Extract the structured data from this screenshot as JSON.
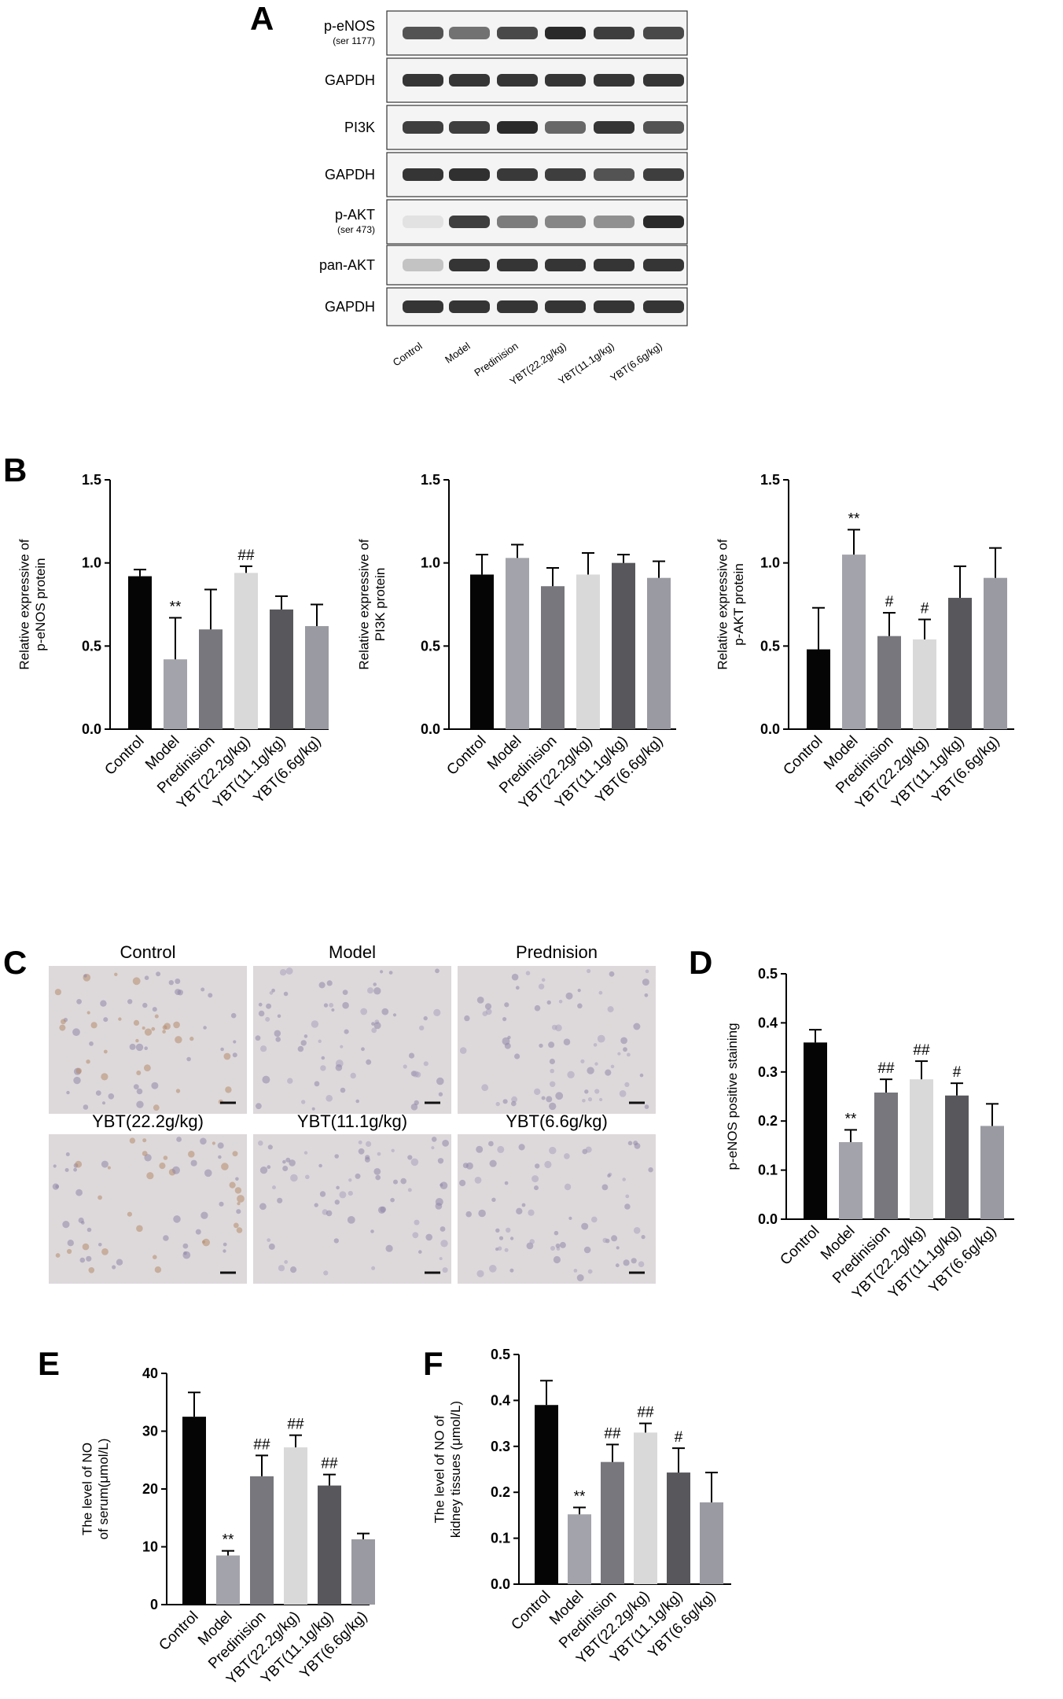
{
  "panels": {
    "A": "A",
    "B": "B",
    "C": "C",
    "D": "D",
    "E": "E",
    "F": "F"
  },
  "blot": {
    "rows": [
      {
        "label": "p-eNOS",
        "sub": "(ser 1177)",
        "intensities": [
          0.75,
          0.6,
          0.8,
          0.95,
          0.85,
          0.8
        ]
      },
      {
        "label": "GAPDH",
        "sub": "",
        "intensities": [
          0.9,
          0.9,
          0.9,
          0.9,
          0.9,
          0.9
        ]
      },
      {
        "label": "PI3K",
        "sub": "",
        "intensities": [
          0.85,
          0.85,
          0.95,
          0.65,
          0.9,
          0.75
        ]
      },
      {
        "label": "GAPDH",
        "sub": "",
        "intensities": [
          0.9,
          0.92,
          0.88,
          0.85,
          0.75,
          0.85
        ]
      },
      {
        "label": "p-AKT",
        "sub": "(ser 473)",
        "intensities": [
          0.05,
          0.85,
          0.55,
          0.5,
          0.45,
          0.95
        ]
      },
      {
        "label": "pan-AKT",
        "sub": "",
        "intensities": [
          0.2,
          0.9,
          0.9,
          0.9,
          0.9,
          0.9
        ]
      },
      {
        "label": "GAPDH",
        "sub": "",
        "intensities": [
          0.9,
          0.9,
          0.9,
          0.9,
          0.9,
          0.9
        ]
      }
    ],
    "lanes": [
      "Control",
      "Model",
      "Predinision",
      "YBT(22.2g/kg)",
      "YBT(11.1g/kg)",
      "YBT(6.6g/kg)"
    ]
  },
  "micrographs": {
    "titles": [
      "Control",
      "Model",
      "Prednision",
      "YBT(22.2g/kg)",
      "YBT(11.1g/kg)",
      "YBT(6.6g/kg)"
    ]
  },
  "colors": [
    "#050505",
    "#a3a3ab",
    "#77777d",
    "#d9d9d9",
    "#58585c",
    "#9a9aa2"
  ],
  "chart_data": [
    {
      "id": "B1",
      "type": "bar",
      "categories": [
        "Control",
        "Model",
        "Predinision",
        "YBT(22.2g/kg)",
        "YBT(11.1g/kg)",
        "YBT(6.6g/kg)"
      ],
      "values": [
        0.92,
        0.42,
        0.6,
        0.94,
        0.72,
        0.62
      ],
      "errors": [
        0.04,
        0.25,
        0.24,
        0.04,
        0.08,
        0.13
      ],
      "annotations": [
        "",
        "**",
        "",
        "##",
        "",
        ""
      ],
      "ylabel": [
        "Relative expressive of",
        "p-eNOS protein"
      ],
      "ylim": [
        0,
        1.5
      ],
      "yticks": [
        "0.0",
        "0.5",
        "1.0",
        "1.5"
      ]
    },
    {
      "id": "B2",
      "type": "bar",
      "categories": [
        "Control",
        "Model",
        "Predinision",
        "YBT(22.2g/kg)",
        "YBT(11.1g/kg)",
        "YBT(6.6g/kg)"
      ],
      "values": [
        0.93,
        1.03,
        0.86,
        0.93,
        1.0,
        0.91
      ],
      "errors": [
        0.12,
        0.08,
        0.11,
        0.13,
        0.05,
        0.1
      ],
      "annotations": [
        "",
        "",
        "",
        "",
        "",
        ""
      ],
      "ylabel": [
        "Relative expressive of",
        "PI3K protein"
      ],
      "ylim": [
        0,
        1.5
      ],
      "yticks": [
        "0.0",
        "0.5",
        "1.0",
        "1.5"
      ]
    },
    {
      "id": "B3",
      "type": "bar",
      "categories": [
        "Control",
        "Model",
        "Predinision",
        "YBT(22.2g/kg)",
        "YBT(11.1g/kg)",
        "YBT(6.6g/kg)"
      ],
      "values": [
        0.48,
        1.05,
        0.56,
        0.54,
        0.79,
        0.91
      ],
      "errors": [
        0.25,
        0.15,
        0.14,
        0.12,
        0.19,
        0.18
      ],
      "annotations": [
        "",
        "**",
        "#",
        "#",
        "",
        ""
      ],
      "ylabel": [
        "Relative expressive of",
        "p-AKT protein"
      ],
      "ylim": [
        0,
        1.5
      ],
      "yticks": [
        "0.0",
        "0.5",
        "1.0",
        "1.5"
      ]
    },
    {
      "id": "D",
      "type": "bar",
      "categories": [
        "Control",
        "Model",
        "Predinision",
        "YBT(22.2g/kg)",
        "YBT(11.1g/kg)",
        "YBT(6.6g/kg)"
      ],
      "values": [
        0.36,
        0.157,
        0.258,
        0.285,
        0.252,
        0.19
      ],
      "errors": [
        0.026,
        0.025,
        0.027,
        0.037,
        0.025,
        0.045
      ],
      "annotations": [
        "",
        "**",
        "##",
        "##",
        "#",
        ""
      ],
      "ylabel": [
        "p-eNOS positive staining"
      ],
      "ylim": [
        0,
        0.5
      ],
      "yticks": [
        "0.0",
        "0.1",
        "0.2",
        "0.3",
        "0.4",
        "0.5"
      ]
    },
    {
      "id": "E",
      "type": "bar",
      "categories": [
        "Control",
        "Model",
        "Predinision",
        "YBT(22.2g/kg)",
        "YBT(11.1g/kg)",
        "YBT(6.6g/kg)"
      ],
      "values": [
        32.5,
        8.5,
        22.2,
        27.2,
        20.6,
        11.3
      ],
      "errors": [
        4.2,
        0.8,
        3.6,
        2.1,
        1.9,
        1.0
      ],
      "annotations": [
        "",
        "**",
        "##",
        "##",
        "##",
        ""
      ],
      "ylabel": [
        "The level of NO",
        "of serum(μmol/L)"
      ],
      "ylim": [
        0,
        40
      ],
      "yticks": [
        "0",
        "10",
        "20",
        "30",
        "40"
      ]
    },
    {
      "id": "F",
      "type": "bar",
      "categories": [
        "Control",
        "Model",
        "Predinision",
        "YBT(22.2g/kg)",
        "YBT(11.1g/kg)",
        "YBT(6.6g/kg)"
      ],
      "values": [
        0.39,
        0.152,
        0.266,
        0.33,
        0.243,
        0.178
      ],
      "errors": [
        0.053,
        0.015,
        0.038,
        0.02,
        0.053,
        0.065
      ],
      "annotations": [
        "",
        "**",
        "##",
        "##",
        "#",
        ""
      ],
      "ylabel": [
        "The level of NO of",
        "kidney tissues (μmol/L)"
      ],
      "ylim": [
        0,
        0.5
      ],
      "yticks": [
        "0.0",
        "0.1",
        "0.2",
        "0.3",
        "0.4",
        "0.5"
      ]
    }
  ]
}
